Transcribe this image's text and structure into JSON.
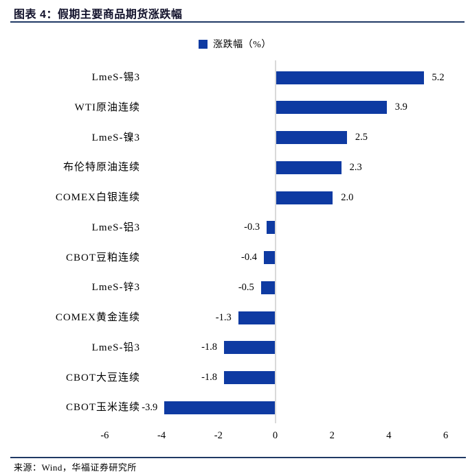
{
  "header": {
    "title": "图表 4：假期主要商品期货涨跌幅"
  },
  "footer": {
    "source": "来源：Wind，华福证券研究所"
  },
  "colors": {
    "bar": "#0e3aa2",
    "header_rule": "#1f3864",
    "axis_line": "#d9d9d9",
    "text": "#000000"
  },
  "chart_data": {
    "type": "bar",
    "orientation": "horizontal",
    "title": "假期主要商品期货涨跌幅",
    "legend": [
      "涨跌幅（%）"
    ],
    "legend_position": "top-center",
    "categories": [
      "LmeS-锡3",
      "WTI原油连续",
      "LmeS-镍3",
      "布伦特原油连续",
      "COMEX白银连续",
      "LmeS-铝3",
      "CBOT豆粕连续",
      "LmeS-锌3",
      "COMEX黄金连续",
      "LmeS-铅3",
      "CBOT大豆连续",
      "CBOT玉米连续"
    ],
    "values": [
      5.2,
      3.9,
      2.5,
      2.3,
      2.0,
      -0.3,
      -0.4,
      -0.5,
      -1.3,
      -1.8,
      -1.8,
      -3.9
    ],
    "value_labels": [
      "5.2",
      "3.9",
      "2.5",
      "2.3",
      "2.0",
      "-0.3",
      "-0.4",
      "-0.5",
      "-1.3",
      "-1.8",
      "-1.8",
      "-3.9"
    ],
    "xlim": [
      -6,
      6
    ],
    "x_ticks": [
      -6,
      -4,
      -2,
      0,
      2,
      4,
      6
    ],
    "x_tick_labels": [
      "-6",
      "-4",
      "-2",
      "0",
      "2",
      "4",
      "6"
    ],
    "grid": false,
    "bar_color": "#0e3aa2",
    "zero_axis_color": "#d9d9d9"
  }
}
